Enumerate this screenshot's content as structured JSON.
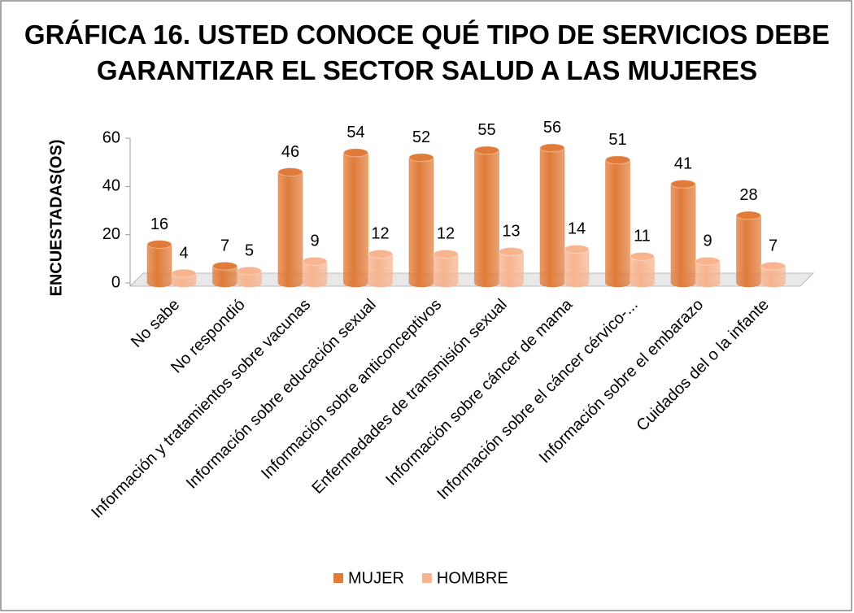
{
  "chart_data": {
    "type": "bar3d",
    "title": "GRÁFICA 16. USTED CONOCE QUÉ TIPO DE SERVICIOS DEBE GARANTIZAR EL SECTOR SALUD A LAS MUJERES",
    "ylabel": "ENCUESTADAS(OS)",
    "categories": [
      "No sabe",
      "No respondió",
      "Información y tratamientos sobre vacunas",
      "Información sobre educación sexual",
      "Información sobre anticonceptivos",
      "Enfermedades de transmisión sexual",
      "Información sobre cáncer de mama",
      "Información sobre el cáncer cérvico-...",
      "Información sobre el embarazo",
      "Cuidados del o la infante"
    ],
    "series": [
      {
        "name": "MUJER",
        "color": "#e07b39",
        "values": [
          16,
          7,
          46,
          54,
          52,
          55,
          56,
          51,
          41,
          28
        ]
      },
      {
        "name": "HOMBRE",
        "color": "#f7b48f",
        "values": [
          4,
          5,
          9,
          12,
          12,
          13,
          14,
          11,
          9,
          7
        ]
      }
    ],
    "ylim": [
      0,
      60
    ],
    "yticks": [
      0,
      20,
      40,
      60
    ],
    "legend": "bottom"
  }
}
